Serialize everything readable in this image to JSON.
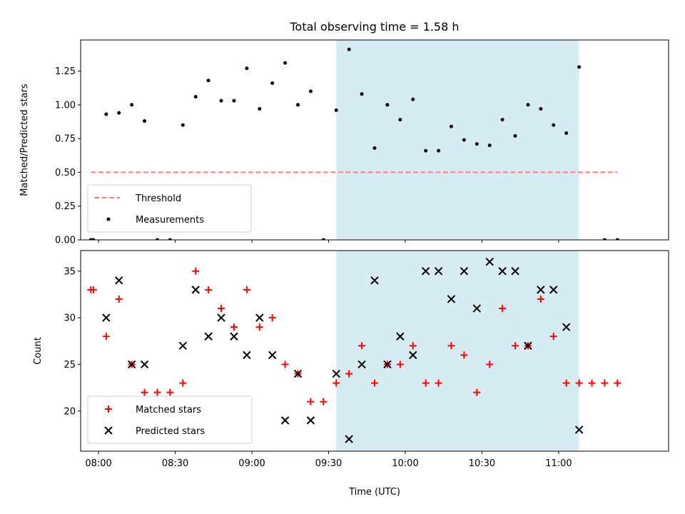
{
  "chart_data": {
    "title": "Total observing time = 1.58 h",
    "xlabel": "Time (UTC)",
    "x_ticks": [
      "08:00",
      "08:30",
      "09:00",
      "09:30",
      "10:00",
      "10:30",
      "11:00"
    ],
    "xlim": [
      "07:53",
      "11:43"
    ],
    "shaded_span": [
      "09:33",
      "11:08"
    ],
    "shade_color": "#add8e6",
    "panels": [
      {
        "type": "scatter",
        "ylabel": "Matched/Predicted stars",
        "ylim": [
          0,
          1.48
        ],
        "y_ticks": [
          "0.00",
          "0.25",
          "0.50",
          "0.75",
          "1.00",
          "1.25"
        ],
        "legend_position": "lower-left",
        "threshold": {
          "name": "Threshold",
          "value": 0.5,
          "x_range": [
            "07:57",
            "11:23"
          ],
          "color": "#ff7f7f",
          "style": "dashed"
        },
        "series": [
          {
            "name": "Measurements",
            "marker": "dot",
            "color": "#000000",
            "points": [
              [
                "07:57",
                0.0
              ],
              [
                "07:58",
                0.0
              ],
              [
                "08:03",
                0.93
              ],
              [
                "08:08",
                0.94
              ],
              [
                "08:13",
                1.0
              ],
              [
                "08:18",
                0.88
              ],
              [
                "08:23",
                0.0
              ],
              [
                "08:28",
                0.0
              ],
              [
                "08:33",
                0.85
              ],
              [
                "08:38",
                1.06
              ],
              [
                "08:43",
                1.18
              ],
              [
                "08:48",
                1.03
              ],
              [
                "08:53",
                1.03
              ],
              [
                "08:58",
                1.27
              ],
              [
                "09:03",
                0.97
              ],
              [
                "09:08",
                1.16
              ],
              [
                "09:13",
                1.31
              ],
              [
                "09:18",
                1.0
              ],
              [
                "09:23",
                1.1
              ],
              [
                "09:28",
                0.0
              ],
              [
                "09:33",
                0.96
              ],
              [
                "09:38",
                1.41
              ],
              [
                "09:43",
                1.08
              ],
              [
                "09:48",
                0.68
              ],
              [
                "09:53",
                1.0
              ],
              [
                "09:58",
                0.89
              ],
              [
                "10:03",
                1.04
              ],
              [
                "10:08",
                0.66
              ],
              [
                "10:13",
                0.66
              ],
              [
                "10:18",
                0.84
              ],
              [
                "10:23",
                0.74
              ],
              [
                "10:28",
                0.71
              ],
              [
                "10:33",
                0.7
              ],
              [
                "10:38",
                0.89
              ],
              [
                "10:43",
                0.77
              ],
              [
                "10:48",
                1.0
              ],
              [
                "10:53",
                0.97
              ],
              [
                "10:58",
                0.85
              ],
              [
                "11:03",
                0.79
              ],
              [
                "11:08",
                1.28
              ],
              [
                "11:18",
                0.0
              ],
              [
                "11:23",
                0.0
              ]
            ]
          }
        ]
      },
      {
        "type": "scatter",
        "ylabel": "Count",
        "ylim": [
          15.7,
          37.2
        ],
        "y_ticks": [
          "20",
          "25",
          "30",
          "35"
        ],
        "legend_position": "lower-left",
        "series": [
          {
            "name": "Matched stars",
            "marker": "plus",
            "color": "#ff0000",
            "points": [
              [
                "07:57",
                33
              ],
              [
                "07:58",
                33
              ],
              [
                "08:03",
                28
              ],
              [
                "08:08",
                32
              ],
              [
                "08:13",
                25
              ],
              [
                "08:18",
                22
              ],
              [
                "08:23",
                22
              ],
              [
                "08:28",
                22
              ],
              [
                "08:33",
                23
              ],
              [
                "08:38",
                35
              ],
              [
                "08:43",
                33
              ],
              [
                "08:48",
                31
              ],
              [
                "08:53",
                29
              ],
              [
                "08:58",
                33
              ],
              [
                "09:03",
                29
              ],
              [
                "09:08",
                30
              ],
              [
                "09:13",
                25
              ],
              [
                "09:18",
                24
              ],
              [
                "09:23",
                21
              ],
              [
                "09:28",
                21
              ],
              [
                "09:33",
                23
              ],
              [
                "09:38",
                24
              ],
              [
                "09:43",
                27
              ],
              [
                "09:48",
                23
              ],
              [
                "09:53",
                25
              ],
              [
                "09:58",
                25
              ],
              [
                "10:03",
                27
              ],
              [
                "10:08",
                23
              ],
              [
                "10:13",
                23
              ],
              [
                "10:18",
                27
              ],
              [
                "10:23",
                26
              ],
              [
                "10:28",
                22
              ],
              [
                "10:33",
                25
              ],
              [
                "10:38",
                31
              ],
              [
                "10:43",
                27
              ],
              [
                "10:48",
                27
              ],
              [
                "10:53",
                32
              ],
              [
                "10:58",
                28
              ],
              [
                "11:03",
                23
              ],
              [
                "11:08",
                23
              ],
              [
                "11:13",
                23
              ],
              [
                "11:18",
                23
              ],
              [
                "11:23",
                23
              ]
            ]
          },
          {
            "name": "Predicted stars",
            "marker": "x",
            "color": "#000000",
            "points": [
              [
                "08:03",
                30
              ],
              [
                "08:08",
                34
              ],
              [
                "08:13",
                25
              ],
              [
                "08:18",
                25
              ],
              [
                "08:33",
                27
              ],
              [
                "08:38",
                33
              ],
              [
                "08:43",
                28
              ],
              [
                "08:48",
                30
              ],
              [
                "08:53",
                28
              ],
              [
                "08:58",
                26
              ],
              [
                "09:03",
                30
              ],
              [
                "09:08",
                26
              ],
              [
                "09:13",
                19
              ],
              [
                "09:18",
                24
              ],
              [
                "09:23",
                19
              ],
              [
                "09:33",
                24
              ],
              [
                "09:38",
                17
              ],
              [
                "09:43",
                25
              ],
              [
                "09:48",
                34
              ],
              [
                "09:53",
                25
              ],
              [
                "09:58",
                28
              ],
              [
                "10:03",
                26
              ],
              [
                "10:08",
                35
              ],
              [
                "10:13",
                35
              ],
              [
                "10:18",
                32
              ],
              [
                "10:23",
                35
              ],
              [
                "10:28",
                31
              ],
              [
                "10:33",
                36
              ],
              [
                "10:38",
                35
              ],
              [
                "10:43",
                35
              ],
              [
                "10:48",
                27
              ],
              [
                "10:53",
                33
              ],
              [
                "10:58",
                33
              ],
              [
                "11:03",
                29
              ],
              [
                "11:08",
                18
              ]
            ]
          }
        ]
      }
    ]
  }
}
